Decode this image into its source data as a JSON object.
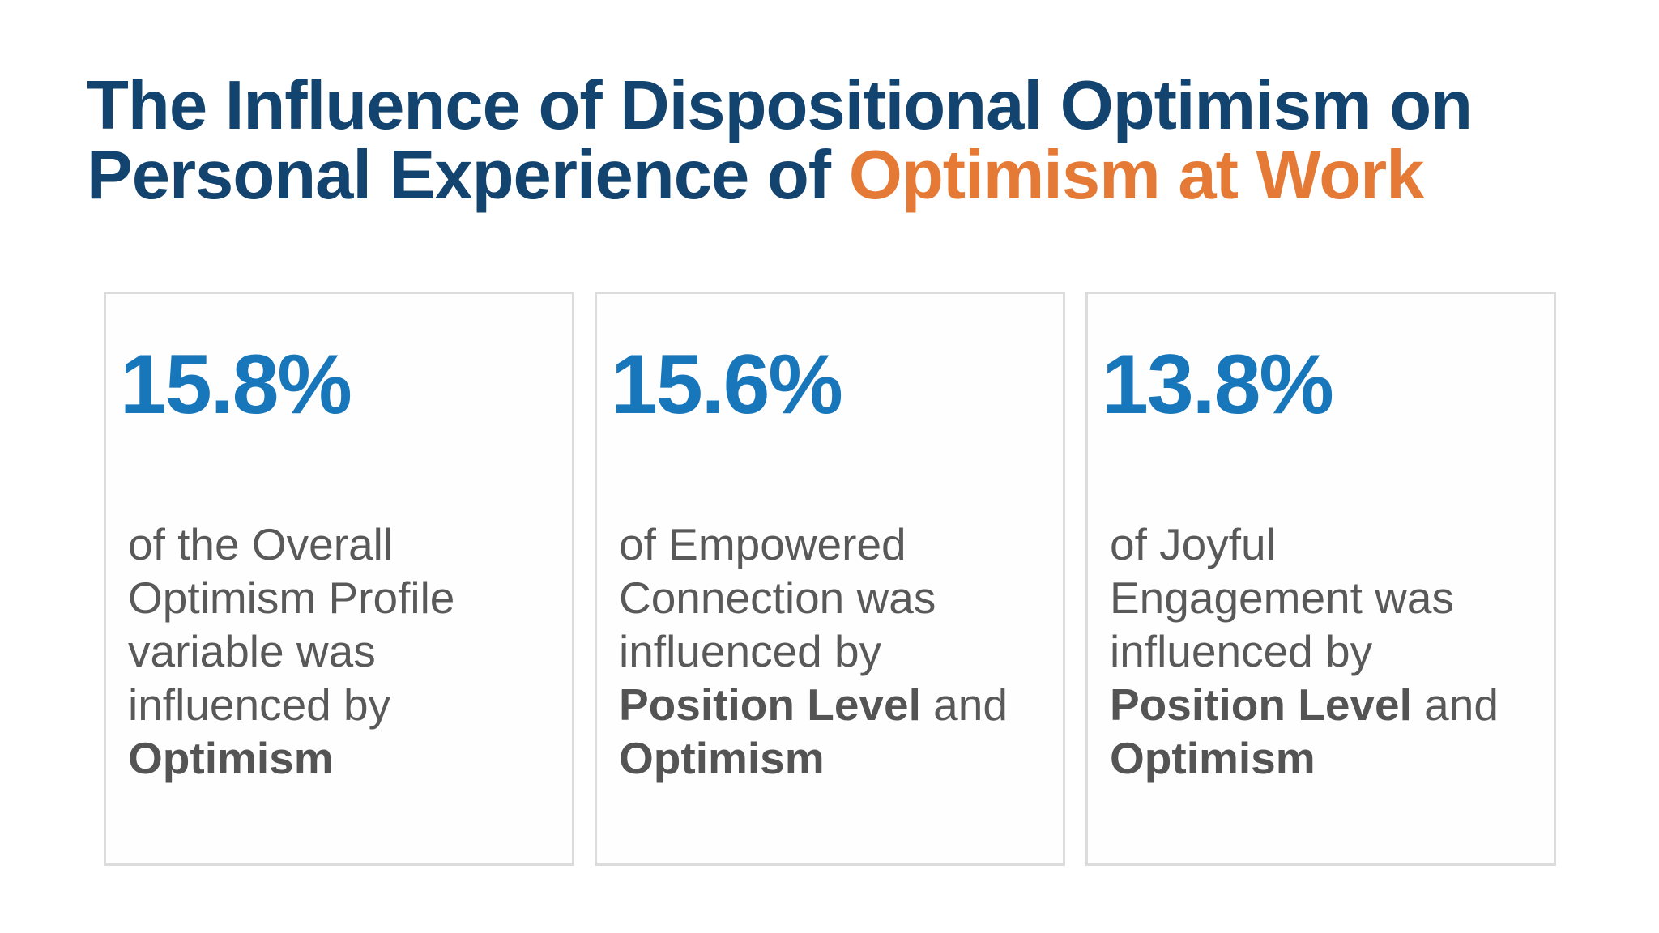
{
  "title": {
    "line1": "The Influence of Dispositional Optimism on",
    "line2_prefix": "Personal Experience of ",
    "line2_accent": "Optimism at Work"
  },
  "cards": [
    {
      "stat": "15.8%",
      "lines": [
        "of the Overall",
        "Optimism Profile",
        "variable was",
        "influenced by"
      ],
      "bold_line": "Optimism"
    },
    {
      "stat": "15.6%",
      "lines": [
        "of Empowered",
        "Connection was",
        "influenced by"
      ],
      "bold_text": "Position Level",
      "tail_text": " and",
      "bold_line": "Optimism"
    },
    {
      "stat": "13.8%",
      "lines": [
        "of Joyful",
        "Engagement was",
        "influenced by"
      ],
      "bold_text": "Position Level",
      "tail_text": " and",
      "bold_line": "Optimism"
    }
  ],
  "colors": {
    "title": "#12446f",
    "accent": "#e57a36",
    "stat": "#1877bb",
    "body_text": "#595959",
    "card_border": "#dcdcdc"
  }
}
